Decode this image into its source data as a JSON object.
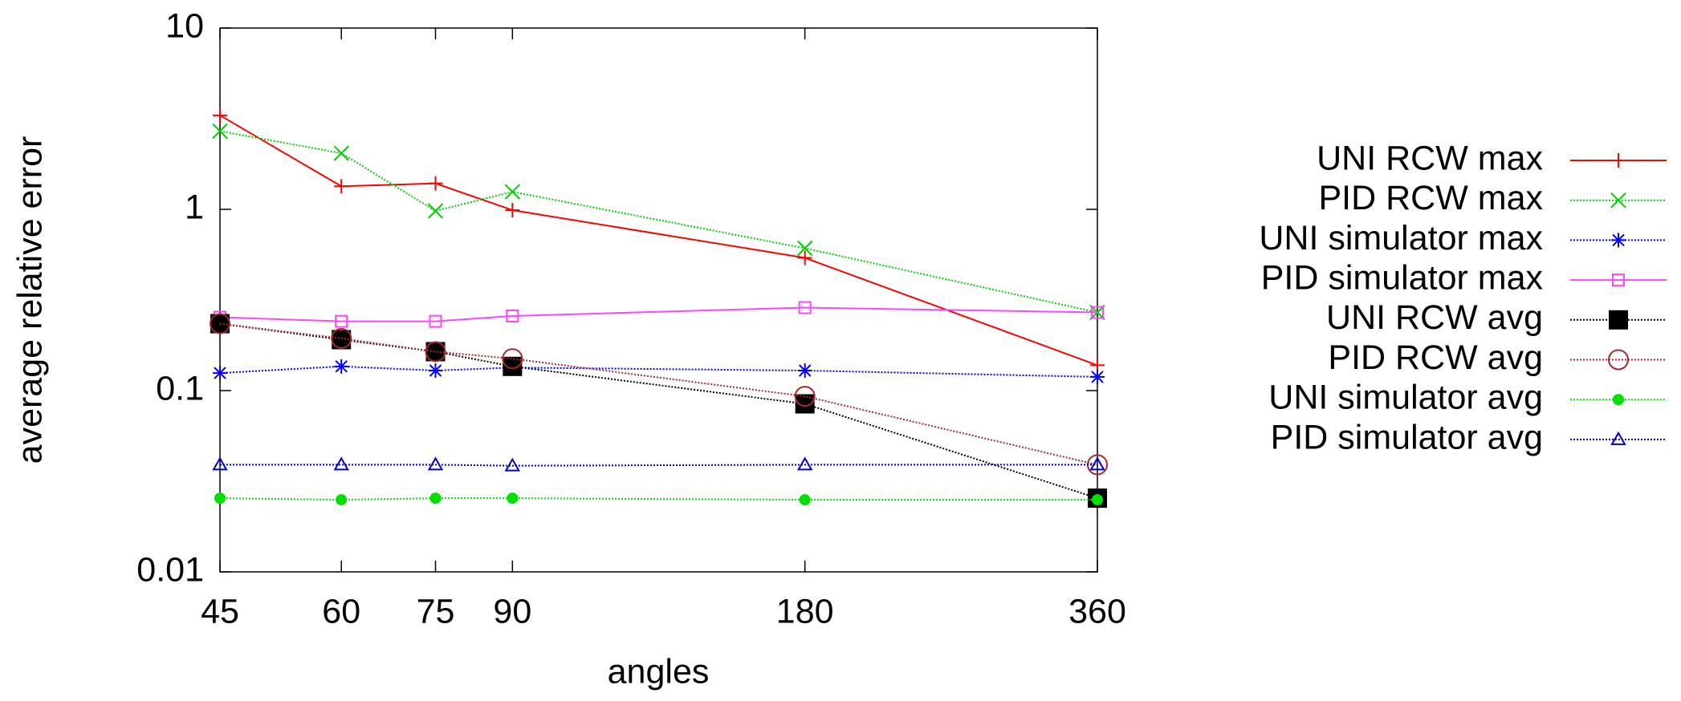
{
  "chart_data": {
    "type": "line",
    "xlabel": "angles",
    "ylabel": "average relative error",
    "x": [
      45,
      60,
      75,
      90,
      180,
      360
    ],
    "xlim": [
      45,
      360
    ],
    "xticks": [
      45,
      60,
      75,
      90,
      180,
      360
    ],
    "xscale": "log",
    "ylim": [
      0.01,
      10
    ],
    "yticks": [
      0.01,
      0.1,
      1,
      10
    ],
    "yscale": "log",
    "legend": "outside-right",
    "series": [
      {
        "name": "UNI RCW max",
        "color": "#ff0000",
        "marker": "plus",
        "dash": "solid",
        "values": [
          3.3,
          1.34,
          1.39,
          0.99,
          0.54,
          0.138
        ]
      },
      {
        "name": "PID RCW max",
        "color": "#00d000",
        "marker": "cross",
        "dash": "dotted",
        "values": [
          2.7,
          2.04,
          0.98,
          1.25,
          0.61,
          0.27
        ]
      },
      {
        "name": "UNI simulator max",
        "color": "#0000ff",
        "marker": "star",
        "dash": "dotted",
        "values": [
          0.125,
          0.136,
          0.129,
          0.134,
          0.129,
          0.119
        ]
      },
      {
        "name": "PID simulator max",
        "color": "#ff44ff",
        "marker": "square",
        "dash": "solid",
        "values": [
          0.254,
          0.241,
          0.241,
          0.258,
          0.287,
          0.27
        ]
      },
      {
        "name": "UNI RCW avg",
        "color": "#000000",
        "marker": "filled-square",
        "dash": "dotted",
        "values": [
          0.234,
          0.191,
          0.164,
          0.136,
          0.0845,
          0.0255
        ]
      },
      {
        "name": "PID RCW avg",
        "color": "#a52a2a",
        "marker": "circle",
        "dash": "dotted",
        "values": [
          0.234,
          0.194,
          0.164,
          0.15,
          0.093,
          0.039
        ]
      },
      {
        "name": "UNI simulator avg",
        "color": "#00e000",
        "marker": "filled-circle",
        "dash": "dotted",
        "values": [
          0.0255,
          0.025,
          0.0255,
          0.0255,
          0.025,
          0.025
        ]
      },
      {
        "name": "PID simulator avg",
        "color": "#0000cc",
        "marker": "triangle",
        "dash": "dotted",
        "values": [
          0.039,
          0.039,
          0.039,
          0.0385,
          0.039,
          0.039
        ]
      }
    ]
  }
}
